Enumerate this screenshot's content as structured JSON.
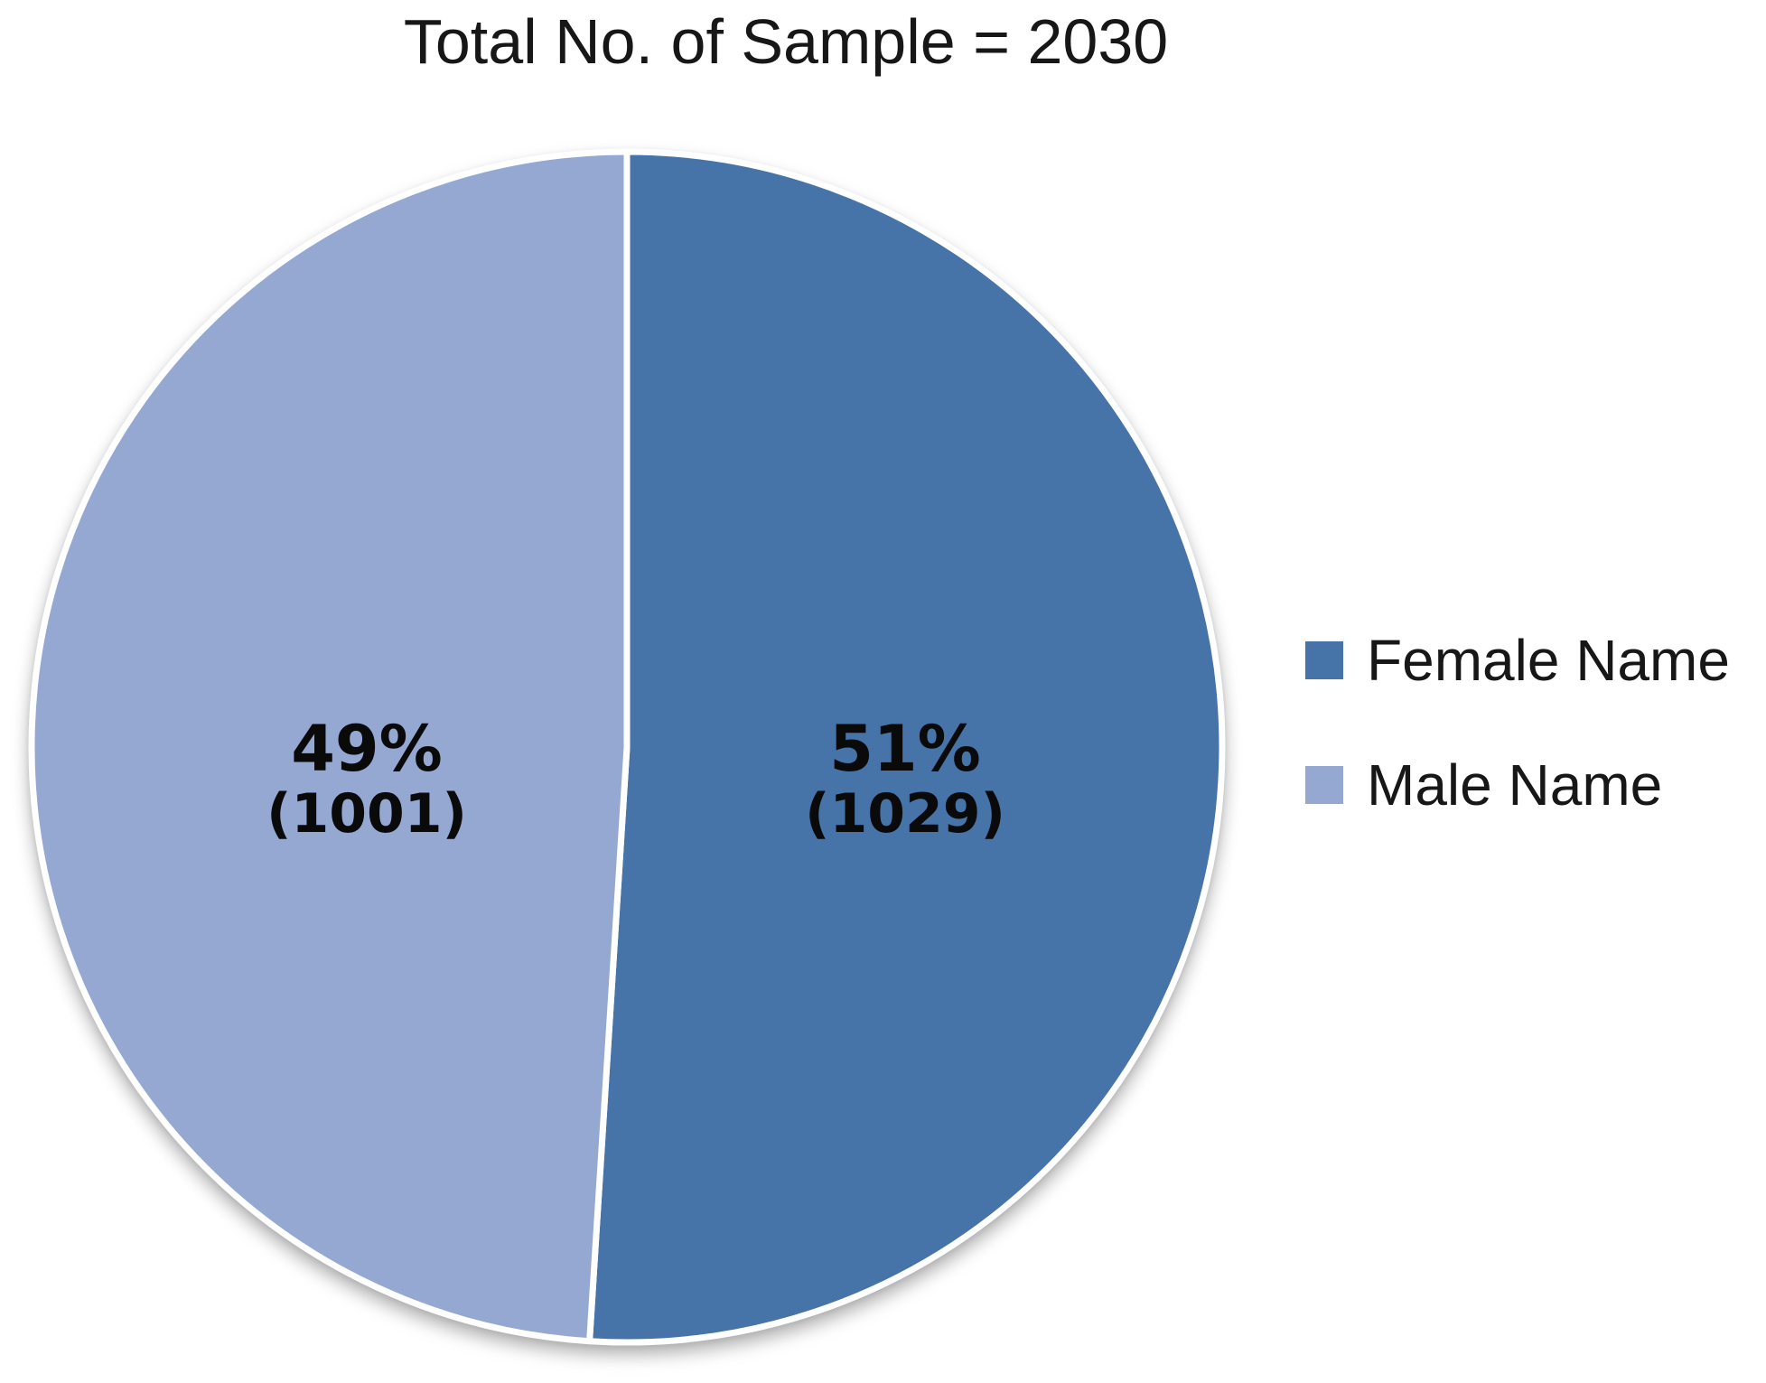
{
  "title": "Total No. of Sample = 2030",
  "chart_data": {
    "type": "pie",
    "title": "Total No. of Sample = 2030",
    "total_samples": 2030,
    "start_angle_deg": 0,
    "direction": "clockwise",
    "legend_position": "right",
    "grid": false,
    "slices": [
      {
        "label": "Female Name",
        "percent": 51,
        "count": 1029,
        "color": "#4674A9",
        "percent_text": "51%",
        "count_text": "(1029)"
      },
      {
        "label": "Male Name",
        "percent": 49,
        "count": 1001,
        "color": "#94A8D2",
        "percent_text": "49%",
        "count_text": "(1001)"
      }
    ]
  },
  "legend": {
    "items": [
      {
        "label": "Female Name",
        "color": "#4674A9"
      },
      {
        "label": "Male Name",
        "color": "#94A8D2"
      }
    ]
  }
}
